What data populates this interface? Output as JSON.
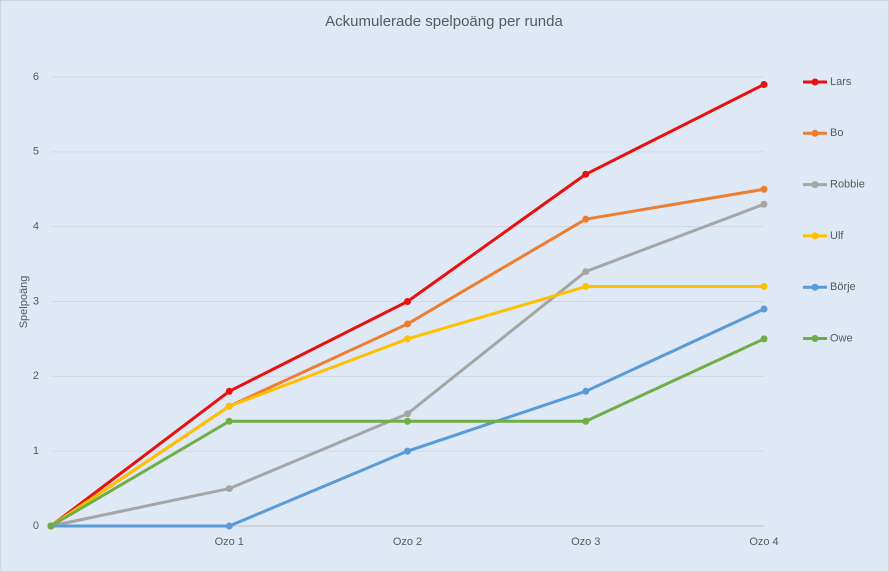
{
  "chart_data": {
    "type": "line",
    "title": "Ackumulerade spelpoäng per runda",
    "y_label": "Spelpoäng",
    "categories": [
      null,
      "Ozo 1",
      "Ozo 2",
      "Ozo 3",
      "Ozo 4"
    ],
    "series": [
      {
        "name": "Lars",
        "color": "#e81010",
        "values": [
          0,
          1.8,
          3.0,
          4.7,
          5.9
        ]
      },
      {
        "name": "Bo",
        "color": "#ed7d31",
        "values": [
          0,
          1.6,
          2.7,
          4.1,
          4.5
        ]
      },
      {
        "name": "Robbie",
        "color": "#a5a5a5",
        "values": [
          0,
          0.5,
          1.5,
          3.4,
          4.3
        ]
      },
      {
        "name": "Ulf",
        "color": "#ffc000",
        "values": [
          0,
          1.6,
          2.5,
          3.2,
          3.2
        ]
      },
      {
        "name": "Börje",
        "color": "#5b9bd5",
        "values": [
          0,
          0,
          1.0,
          1.8,
          2.9
        ]
      },
      {
        "name": "Owe",
        "color": "#70ad47",
        "values": [
          0,
          1.4,
          1.4,
          1.4,
          2.5
        ]
      }
    ],
    "ylim": [
      0,
      6
    ],
    "yticks": [
      0,
      1,
      2,
      3,
      4,
      5,
      6
    ],
    "grid": true,
    "legend": "right"
  }
}
